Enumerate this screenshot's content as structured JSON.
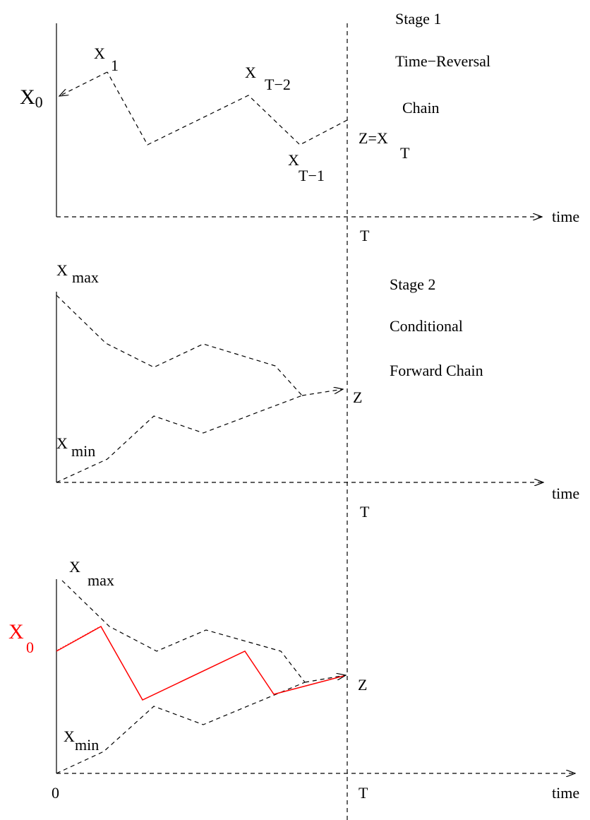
{
  "panel1": {
    "stage_title": "Stage 1",
    "stage_line2": "Time−Reversal",
    "stage_line3": "Chain",
    "label_x0_main": "X",
    "label_x0_sub": "0",
    "label_x1_main": "X",
    "label_x1_sub": "1",
    "label_xt2_main": "X",
    "label_xt2_sub": "T−2",
    "label_xt1_main": "X",
    "label_xt1_sub": "T−1",
    "label_z_main": "Z=X",
    "label_z_sub": "T",
    "time_label": "time",
    "t_label": "T"
  },
  "panel2": {
    "stage_title": "Stage 2",
    "stage_line2": "Conditional",
    "stage_line3": "Forward Chain",
    "label_xmax_main": "X",
    "label_xmax_sub": "max",
    "label_xmin_main": "X",
    "label_xmin_sub": "min",
    "label_z": "Z",
    "time_label": "time",
    "t_label": "T"
  },
  "panel3": {
    "label_xmax_main": "X",
    "label_xmax_sub": "max",
    "label_xmin_main": "X",
    "label_xmin_sub": "min",
    "label_x0_main": "X",
    "label_x0_sub": "0",
    "label_z": "Z",
    "origin_label": "0",
    "time_label": "time",
    "t_label": "T"
  },
  "colors": {
    "path": "#000000",
    "highlight": "#ff0000"
  }
}
